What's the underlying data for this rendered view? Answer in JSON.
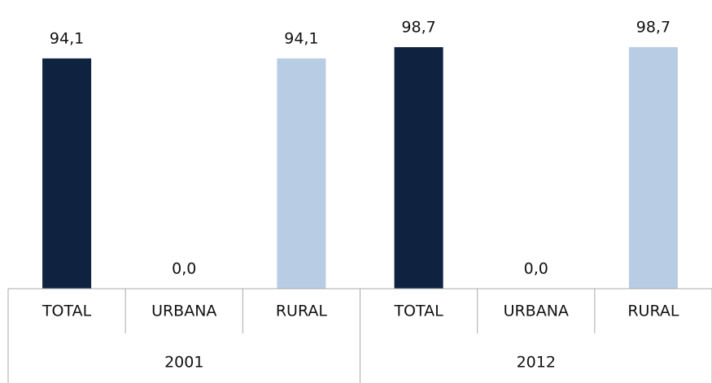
{
  "chart_data": {
    "type": "bar",
    "categories": [
      "TOTAL",
      "URBANA",
      "RURAL",
      "TOTAL",
      "URBANA",
      "RURAL"
    ],
    "groups": [
      "2001",
      "2012"
    ],
    "values": [
      94.1,
      0,
      94.1,
      98.7,
      0,
      98.7
    ],
    "value_labels": [
      "94,1",
      "0,0",
      "94,1",
      "98,7",
      "0,0",
      "98,7"
    ],
    "colors": [
      "#0f2341",
      "#4f81bd",
      "#b8cce4",
      "#0f2341",
      "#4f81bd",
      "#b8cce4"
    ]
  }
}
